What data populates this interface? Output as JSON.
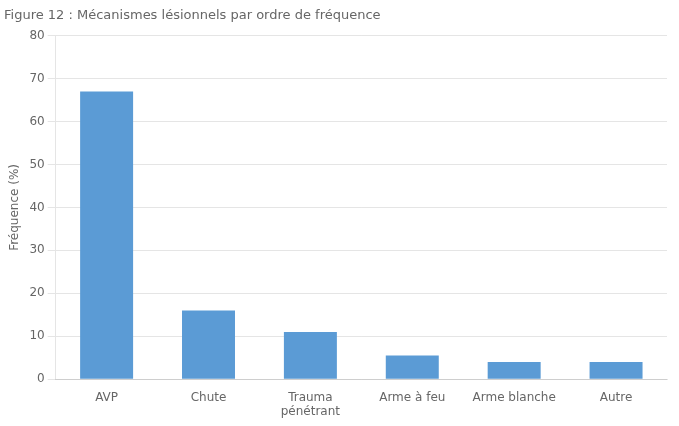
{
  "chart_data": {
    "type": "bar",
    "title": "Figure 12 : Mécanismes lésionnels par ordre de fréquence",
    "categories": [
      "AVP",
      "Chute",
      "Trauma\npénétrant",
      "Arme à feu",
      "Arme blanche",
      "Autre"
    ],
    "values": [
      67,
      16,
      11,
      5.5,
      4,
      4
    ],
    "color": "#5B9BD5",
    "ylabel": "Fréquence (%)",
    "ylim": [
      0,
      80
    ],
    "yticks": [
      0,
      10,
      20,
      30,
      40,
      50,
      60,
      70,
      80
    ],
    "grid": true
  }
}
